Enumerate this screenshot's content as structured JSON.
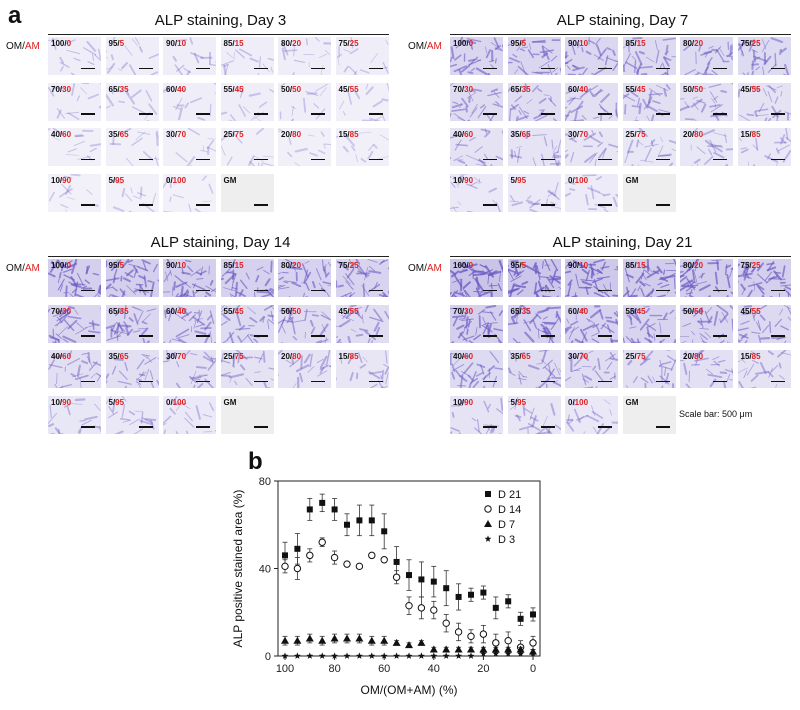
{
  "panel_a_letter": "a",
  "panel_b_letter": "b",
  "omam_label": {
    "om": "OM/",
    "am": "AM"
  },
  "scale_note": "Scale bar: 500 μm",
  "gm_label": "GM",
  "ratios": [
    {
      "om": "100",
      "am": "0"
    },
    {
      "om": "95",
      "am": "5"
    },
    {
      "om": "90",
      "am": "10"
    },
    {
      "om": "85",
      "am": "15"
    },
    {
      "om": "80",
      "am": "20"
    },
    {
      "om": "75",
      "am": "25"
    },
    {
      "om": "70",
      "am": "30"
    },
    {
      "om": "65",
      "am": "35"
    },
    {
      "om": "60",
      "am": "40"
    },
    {
      "om": "55",
      "am": "45"
    },
    {
      "om": "50",
      "am": "50"
    },
    {
      "om": "45",
      "am": "55"
    },
    {
      "om": "40",
      "am": "60"
    },
    {
      "om": "35",
      "am": "65"
    },
    {
      "om": "30",
      "am": "70"
    },
    {
      "om": "25",
      "am": "75"
    },
    {
      "om": "20",
      "am": "80"
    },
    {
      "om": "15",
      "am": "85"
    },
    {
      "om": "10",
      "am": "90"
    },
    {
      "om": "5",
      "am": "95"
    },
    {
      "om": "0",
      "am": "100"
    }
  ],
  "groups": [
    {
      "title": "ALP staining, Day 3"
    },
    {
      "title": "ALP staining, Day 7"
    },
    {
      "title": "ALP staining, Day 14"
    },
    {
      "title": "ALP staining, Day 21"
    }
  ],
  "chart_data": {
    "type": "scatter",
    "xlabel": "OM/(OM+AM) (%)",
    "ylabel": "ALP positive stained area (%)",
    "xlim": [
      100,
      0
    ],
    "ylim": [
      0,
      80
    ],
    "xticks": [
      100,
      80,
      60,
      40,
      20,
      0
    ],
    "yticks": [
      0,
      40,
      80
    ],
    "legend_position": "top-right",
    "x": [
      100,
      95,
      90,
      85,
      80,
      75,
      70,
      65,
      60,
      55,
      50,
      45,
      40,
      35,
      30,
      25,
      20,
      15,
      10,
      5,
      0
    ],
    "series": [
      {
        "name": "D 21",
        "marker": "filled-square",
        "values": [
          46,
          49,
          67,
          70,
          67,
          60,
          62,
          62,
          57,
          43,
          37,
          35,
          34,
          31,
          27,
          28,
          29,
          22,
          25,
          17,
          19
        ],
        "errors": [
          6,
          7,
          5,
          4,
          5,
          5,
          7,
          7,
          8,
          7,
          7,
          8,
          7,
          8,
          6,
          3,
          3,
          5,
          3,
          3,
          3
        ]
      },
      {
        "name": "D 14",
        "marker": "open-circle",
        "values": [
          41,
          40,
          46,
          52,
          45,
          42,
          41,
          46,
          44,
          36,
          23,
          22,
          21,
          15,
          11,
          9,
          10,
          6,
          7,
          4,
          6
        ],
        "errors": [
          3,
          5,
          3,
          2,
          3,
          1,
          1,
          1,
          1,
          3,
          4,
          5,
          4,
          4,
          4,
          3,
          4,
          4,
          4,
          3,
          3
        ]
      },
      {
        "name": "D 7",
        "marker": "filled-triangle",
        "values": [
          7,
          7,
          8,
          7,
          8,
          8,
          8,
          7,
          7,
          6,
          5,
          6,
          3,
          3,
          3,
          3,
          3,
          3,
          3,
          3,
          2
        ],
        "errors": [
          2,
          2,
          2,
          2,
          2,
          2,
          2,
          2,
          2,
          1,
          1,
          1,
          1,
          1,
          1,
          1,
          1,
          1,
          1,
          1,
          1
        ]
      },
      {
        "name": "D 3",
        "marker": "star",
        "values": [
          0,
          0,
          0,
          0,
          0,
          0,
          0,
          0,
          0,
          0,
          0,
          0,
          0,
          0,
          0,
          0,
          1,
          1,
          1,
          1,
          1
        ],
        "errors": [
          0,
          0,
          0,
          0,
          0,
          0,
          0,
          0,
          0,
          0,
          0,
          0,
          0,
          0,
          0,
          0,
          0,
          0,
          0,
          0,
          0
        ]
      }
    ]
  },
  "colors": {
    "am_red": "#e02020",
    "stain_purple": "#6b5bc4",
    "tile_bg": "#f4f3fa",
    "gm_bg": "#eeeeee"
  }
}
